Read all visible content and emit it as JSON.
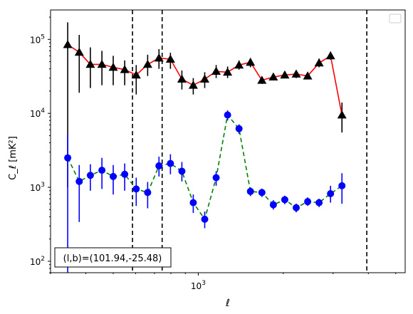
{
  "chart_data": {
    "type": "scatter",
    "xlabel": "ℓ",
    "ylabel": "C_ℓ [mK²]",
    "xscale": "log",
    "yscale": "log",
    "xlim": [
      300,
      5400
    ],
    "ylim": [
      70,
      250000
    ],
    "x_ticks": [
      {
        "value": 1000,
        "label": "10^3"
      }
    ],
    "y_ticks": [
      {
        "value": 100,
        "label": "10^2"
      },
      {
        "value": 1000,
        "label": "10^3"
      },
      {
        "value": 10000,
        "label": "10^4"
      },
      {
        "value": 100000,
        "label": "10^5"
      }
    ],
    "grid": false,
    "legend": "top-right (empty)",
    "annotation": "(l,b)=(101.94,-25.48)",
    "vlines": [
      585,
      745,
      3950
    ],
    "series": [
      {
        "marker": "triangle",
        "marker_color": "#000000",
        "errorbar_color": "#000000",
        "line_color": "#ff0000",
        "line_style": "solid",
        "points": [
          {
            "x": 345,
            "y": 85000,
            "ylow": 1000,
            "yhigh": 170000
          },
          {
            "x": 379,
            "y": 67000,
            "ylow": 19000,
            "yhigh": 115000
          },
          {
            "x": 415,
            "y": 46000,
            "ylow": 22000,
            "yhigh": 78000
          },
          {
            "x": 456,
            "y": 46000,
            "ylow": 24000,
            "yhigh": 70000
          },
          {
            "x": 500,
            "y": 42000,
            "ylow": 24000,
            "yhigh": 60000
          },
          {
            "x": 549,
            "y": 39000,
            "ylow": 24000,
            "yhigh": 52000
          },
          {
            "x": 603,
            "y": 33000,
            "ylow": 18000,
            "yhigh": 45000
          },
          {
            "x": 662,
            "y": 46000,
            "ylow": 32000,
            "yhigh": 62000
          },
          {
            "x": 726,
            "y": 56000,
            "ylow": 40000,
            "yhigh": 74000
          },
          {
            "x": 797,
            "y": 54000,
            "ylow": 40000,
            "yhigh": 66000
          },
          {
            "x": 875,
            "y": 29000,
            "ylow": 21000,
            "yhigh": 38000
          },
          {
            "x": 960,
            "y": 24000,
            "ylow": 18000,
            "yhigh": 30000
          },
          {
            "x": 1054,
            "y": 29000,
            "ylow": 22000,
            "yhigh": 36000
          },
          {
            "x": 1157,
            "y": 37000,
            "ylow": 30000,
            "yhigh": 45000
          },
          {
            "x": 1270,
            "y": 36000,
            "ylow": 30000,
            "yhigh": 43000
          },
          {
            "x": 1394,
            "y": 45000,
            "ylow": 39000,
            "yhigh": 52000
          },
          {
            "x": 1530,
            "y": 49000,
            "ylow": 42000,
            "yhigh": 56000
          },
          {
            "x": 1680,
            "y": 28000,
            "ylow": 25000,
            "yhigh": 31000
          },
          {
            "x": 1844,
            "y": 31000,
            "ylow": 28000,
            "yhigh": 34000
          },
          {
            "x": 2024,
            "y": 33000,
            "ylow": 30000,
            "yhigh": 37000
          },
          {
            "x": 2222,
            "y": 34000,
            "ylow": 30000,
            "yhigh": 38000
          },
          {
            "x": 2439,
            "y": 32000,
            "ylow": 29000,
            "yhigh": 35000
          },
          {
            "x": 2677,
            "y": 48000,
            "ylow": 42000,
            "yhigh": 55000
          },
          {
            "x": 2939,
            "y": 60000,
            "ylow": 53000,
            "yhigh": 68000
          },
          {
            "x": 3226,
            "y": 9500,
            "ylow": 5500,
            "yhigh": 14000
          }
        ]
      },
      {
        "marker": "circle",
        "marker_color": "#0000ff",
        "errorbar_color": "#0000ff",
        "line_color": "#008000",
        "line_style": "dashed",
        "points": [
          {
            "x": 345,
            "y": 2500,
            "ylow": 30,
            "yhigh": 5200
          },
          {
            "x": 379,
            "y": 1200,
            "ylow": 340,
            "yhigh": 2000
          },
          {
            "x": 415,
            "y": 1450,
            "ylow": 900,
            "yhigh": 2050
          },
          {
            "x": 456,
            "y": 1700,
            "ylow": 950,
            "yhigh": 2500
          },
          {
            "x": 500,
            "y": 1400,
            "ylow": 800,
            "yhigh": 2000
          },
          {
            "x": 549,
            "y": 1500,
            "ylow": 900,
            "yhigh": 2100
          },
          {
            "x": 603,
            "y": 950,
            "ylow": 560,
            "yhigh": 1350
          },
          {
            "x": 662,
            "y": 850,
            "ylow": 520,
            "yhigh": 1180
          },
          {
            "x": 726,
            "y": 1950,
            "ylow": 1400,
            "yhigh": 2600
          },
          {
            "x": 797,
            "y": 2100,
            "ylow": 1500,
            "yhigh": 2800
          },
          {
            "x": 875,
            "y": 1650,
            "ylow": 1200,
            "yhigh": 2200
          },
          {
            "x": 960,
            "y": 620,
            "ylow": 450,
            "yhigh": 800
          },
          {
            "x": 1054,
            "y": 370,
            "ylow": 280,
            "yhigh": 470
          },
          {
            "x": 1157,
            "y": 1350,
            "ylow": 1050,
            "yhigh": 1650
          },
          {
            "x": 1270,
            "y": 9500,
            "ylow": 8000,
            "yhigh": 11000
          },
          {
            "x": 1394,
            "y": 6200,
            "ylow": 5300,
            "yhigh": 7100
          },
          {
            "x": 1530,
            "y": 880,
            "ylow": 760,
            "yhigh": 1000
          },
          {
            "x": 1680,
            "y": 850,
            "ylow": 740,
            "yhigh": 960
          },
          {
            "x": 1844,
            "y": 580,
            "ylow": 500,
            "yhigh": 670
          },
          {
            "x": 2024,
            "y": 680,
            "ylow": 590,
            "yhigh": 770
          },
          {
            "x": 2222,
            "y": 530,
            "ylow": 460,
            "yhigh": 600
          },
          {
            "x": 2439,
            "y": 640,
            "ylow": 560,
            "yhigh": 730
          },
          {
            "x": 2677,
            "y": 620,
            "ylow": 540,
            "yhigh": 700
          },
          {
            "x": 2939,
            "y": 820,
            "ylow": 620,
            "yhigh": 1050
          },
          {
            "x": 3226,
            "y": 1050,
            "ylow": 600,
            "yhigh": 1550
          }
        ]
      }
    ]
  }
}
